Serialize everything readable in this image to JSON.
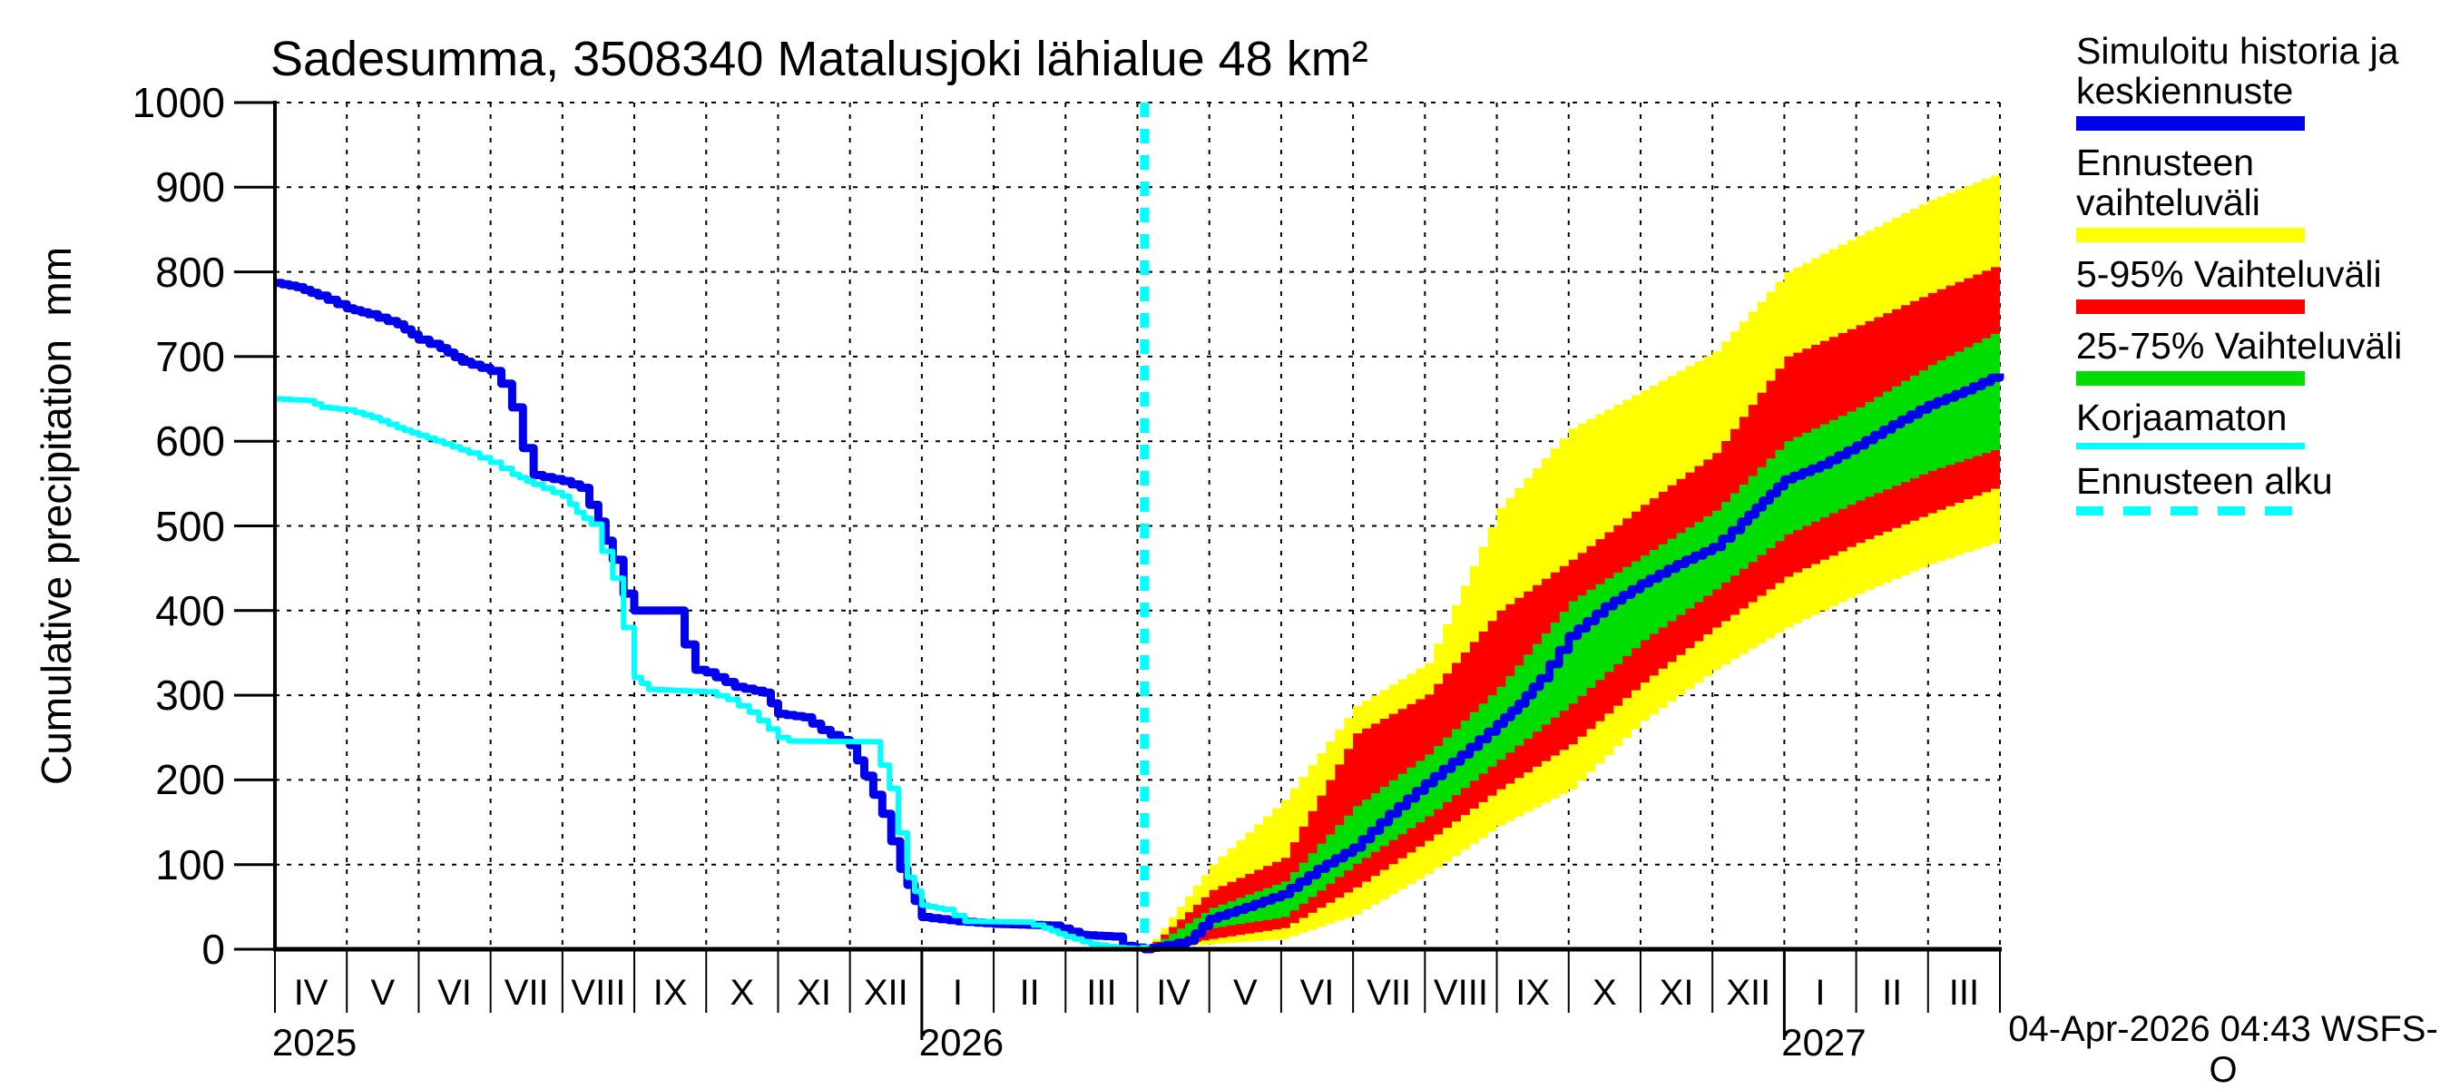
{
  "title": "Sadesumma, 3508340 Matalusjoki lähialue 48 km²",
  "y_axis": {
    "label": "Cumulative precipitation  mm",
    "unit": "mm",
    "ticks": [
      0,
      100,
      200,
      300,
      400,
      500,
      600,
      700,
      800,
      900,
      1000
    ],
    "range": [
      0,
      1000
    ]
  },
  "x_axis": {
    "month_labels": [
      "IV",
      "V",
      "VI",
      "VII",
      "VIII",
      "IX",
      "X",
      "XI",
      "XII",
      "I",
      "II",
      "III",
      "IV",
      "V",
      "VI",
      "VII",
      "VIII",
      "IX",
      "X",
      "XI",
      "XII",
      "I",
      "II",
      "III"
    ],
    "year_labels": [
      {
        "text": "2025",
        "month_index": 0
      },
      {
        "text": "2026",
        "month_index": 9
      },
      {
        "text": "2027",
        "month_index": 21
      }
    ],
    "range_months": 24
  },
  "footer": {
    "timestamp": "04-Apr-2026 04:43 WSFS-O"
  },
  "colors": {
    "median": "#0000ee",
    "uncorrected": "#00ffff",
    "range_band": "#ffff00",
    "p5_95_band": "#ff0000",
    "p25_75_band": "#00dd00",
    "forecast_start": "#00ffff",
    "grid": "#000000"
  },
  "legend": {
    "items": [
      {
        "label_lines": [
          "Simuloitu historia ja",
          "keskiennuste"
        ],
        "color": "#0000ee",
        "height": 16,
        "dashed": false
      },
      {
        "label_lines": [
          "Ennusteen vaihteluväli"
        ],
        "color": "#ffff00",
        "height": 16,
        "dashed": false
      },
      {
        "label_lines": [
          "5-95% Vaihteluväli"
        ],
        "color": "#ff0000",
        "height": 16,
        "dashed": false
      },
      {
        "label_lines": [
          "25-75% Vaihteluväli"
        ],
        "color": "#00dd00",
        "height": 16,
        "dashed": false
      },
      {
        "label_lines": [
          "Korjaamaton"
        ],
        "color": "#00ffff",
        "height": 7,
        "dashed": false
      },
      {
        "label_lines": [
          "Ennusteen alku"
        ],
        "color": "#00ffff",
        "height": 10,
        "dashed": true
      }
    ]
  },
  "chart_data": {
    "type": "line",
    "title": "Sadesumma, 3508340 Matalusjoki lähialue 48 km²",
    "xlabel_unit": "months since 2025-04-01",
    "ylabel": "Cumulative precipitation mm",
    "ylim": [
      0,
      1000
    ],
    "xlim_months": [
      0,
      24
    ],
    "grid": true,
    "forecast_start_t": 12.1,
    "forecast_start_label": "04-Apr-2026",
    "series": [
      {
        "name": "Simuloitu historia ja keskiennuste",
        "color": "#0000ee",
        "width": 9,
        "points": [
          [
            0,
            787
          ],
          [
            0.3,
            782
          ],
          [
            0.6,
            772
          ],
          [
            1,
            757
          ],
          [
            1.3,
            750
          ],
          [
            1.7,
            738
          ],
          [
            2,
            720
          ],
          [
            2.3,
            710
          ],
          [
            2.6,
            694
          ],
          [
            3,
            683
          ],
          [
            3.15,
            668
          ],
          [
            3.3,
            640
          ],
          [
            3.45,
            592
          ],
          [
            3.6,
            560
          ],
          [
            4,
            553
          ],
          [
            4.25,
            545
          ],
          [
            4.5,
            505
          ],
          [
            4.7,
            460
          ],
          [
            4.85,
            420
          ],
          [
            5,
            400
          ],
          [
            5.55,
            400
          ],
          [
            5.7,
            360
          ],
          [
            5.85,
            330
          ],
          [
            6,
            327
          ],
          [
            6.4,
            310
          ],
          [
            6.8,
            303
          ],
          [
            7,
            278
          ],
          [
            7.35,
            274
          ],
          [
            7.6,
            259
          ],
          [
            8,
            241
          ],
          [
            8.2,
            205
          ],
          [
            8.45,
            160
          ],
          [
            8.7,
            95
          ],
          [
            9,
            38
          ],
          [
            9.5,
            33
          ],
          [
            10,
            30
          ],
          [
            10.8,
            28
          ],
          [
            11.2,
            17
          ],
          [
            11.65,
            15
          ],
          [
            11.8,
            4
          ],
          [
            12.1,
            0
          ],
          [
            12.4,
            5
          ],
          [
            12.7,
            10
          ],
          [
            13,
            36
          ],
          [
            13.5,
            50
          ],
          [
            14,
            65
          ],
          [
            14.5,
            95
          ],
          [
            15,
            120
          ],
          [
            15.5,
            160
          ],
          [
            16,
            196
          ],
          [
            16.5,
            230
          ],
          [
            17,
            266
          ],
          [
            17.3,
            290
          ],
          [
            17.6,
            320
          ],
          [
            18,
            370
          ],
          [
            18.5,
            405
          ],
          [
            19,
            432
          ],
          [
            19.5,
            455
          ],
          [
            20,
            475
          ],
          [
            20.4,
            505
          ],
          [
            20.7,
            530
          ],
          [
            21,
            555
          ],
          [
            21.5,
            572
          ],
          [
            22,
            595
          ],
          [
            22.5,
            620
          ],
          [
            23,
            643
          ],
          [
            23.5,
            660
          ],
          [
            24,
            680
          ]
        ]
      },
      {
        "name": "Korjaamaton",
        "color": "#00ffff",
        "width": 6,
        "points": [
          [
            0,
            650
          ],
          [
            0.45,
            648
          ],
          [
            0.65,
            640
          ],
          [
            1,
            637
          ],
          [
            1.35,
            628
          ],
          [
            1.7,
            616
          ],
          [
            2,
            607
          ],
          [
            2.35,
            597
          ],
          [
            2.7,
            586
          ],
          [
            3,
            575
          ],
          [
            3.3,
            561
          ],
          [
            3.6,
            549
          ],
          [
            4,
            535
          ],
          [
            4.2,
            516
          ],
          [
            4.4,
            502
          ],
          [
            4.55,
            470
          ],
          [
            4.7,
            438
          ],
          [
            4.85,
            380
          ],
          [
            5,
            321
          ],
          [
            5.2,
            307
          ],
          [
            6,
            304
          ],
          [
            6.3,
            295
          ],
          [
            6.6,
            280
          ],
          [
            7,
            250
          ],
          [
            7.15,
            246
          ],
          [
            8.3,
            245
          ],
          [
            8.55,
            190
          ],
          [
            8.8,
            85
          ],
          [
            9,
            52
          ],
          [
            9.3,
            47
          ],
          [
            9.6,
            33
          ],
          [
            10.4,
            32
          ],
          [
            10.7,
            25
          ],
          [
            11,
            15
          ],
          [
            11.35,
            6
          ],
          [
            11.7,
            2
          ],
          [
            12.1,
            0
          ]
        ]
      }
    ],
    "bands": [
      {
        "name": "Ennusteen vaihteluväli",
        "color": "#ffff00",
        "top": [
          [
            12.1,
            0
          ],
          [
            13,
            100
          ],
          [
            14,
            176
          ],
          [
            15,
            287
          ],
          [
            16,
            338
          ],
          [
            17,
            521
          ],
          [
            18,
            615
          ],
          [
            19,
            660
          ],
          [
            20,
            706
          ],
          [
            21,
            800
          ],
          [
            22,
            843
          ],
          [
            23,
            885
          ],
          [
            24,
            918
          ]
        ],
        "bottom": [
          [
            12.1,
            0
          ],
          [
            13,
            6
          ],
          [
            14,
            12
          ],
          [
            15,
            41
          ],
          [
            16,
            89
          ],
          [
            17,
            146
          ],
          [
            18,
            189
          ],
          [
            19,
            270
          ],
          [
            20,
            330
          ],
          [
            21,
            380
          ],
          [
            22,
            420
          ],
          [
            23,
            455
          ],
          [
            24,
            483
          ]
        ]
      },
      {
        "name": "5-95% Vaihteluväli",
        "color": "#ff0000",
        "top": [
          [
            12.1,
            0
          ],
          [
            13,
            70
          ],
          [
            14,
            108
          ],
          [
            15,
            255
          ],
          [
            16,
            301
          ],
          [
            17,
            400
          ],
          [
            18,
            460
          ],
          [
            19,
            525
          ],
          [
            20,
            586
          ],
          [
            21,
            700
          ],
          [
            22,
            737
          ],
          [
            23,
            775
          ],
          [
            24,
            810
          ]
        ],
        "bottom": [
          [
            12.1,
            0
          ],
          [
            13,
            12
          ],
          [
            14,
            25
          ],
          [
            15,
            73
          ],
          [
            16,
            128
          ],
          [
            17,
            189
          ],
          [
            18,
            242
          ],
          [
            19,
            315
          ],
          [
            20,
            380
          ],
          [
            21,
            440
          ],
          [
            22,
            480
          ],
          [
            23,
            515
          ],
          [
            24,
            548
          ]
        ]
      },
      {
        "name": "25-75% Vaihteluväli",
        "color": "#00dd00",
        "top": [
          [
            12.1,
            0
          ],
          [
            13,
            49
          ],
          [
            14,
            80
          ],
          [
            15,
            169
          ],
          [
            16,
            230
          ],
          [
            17,
            310
          ],
          [
            18,
            411
          ],
          [
            19,
            465
          ],
          [
            20,
            518
          ],
          [
            21,
            600
          ],
          [
            22,
            640
          ],
          [
            23,
            690
          ],
          [
            24,
            732
          ]
        ],
        "bottom": [
          [
            12.1,
            0
          ],
          [
            13,
            25
          ],
          [
            14,
            38
          ],
          [
            15,
            101
          ],
          [
            16,
            157
          ],
          [
            17,
            224
          ],
          [
            18,
            290
          ],
          [
            19,
            365
          ],
          [
            20,
            425
          ],
          [
            21,
            490
          ],
          [
            22,
            530
          ],
          [
            23,
            565
          ],
          [
            24,
            593
          ]
        ]
      }
    ]
  }
}
